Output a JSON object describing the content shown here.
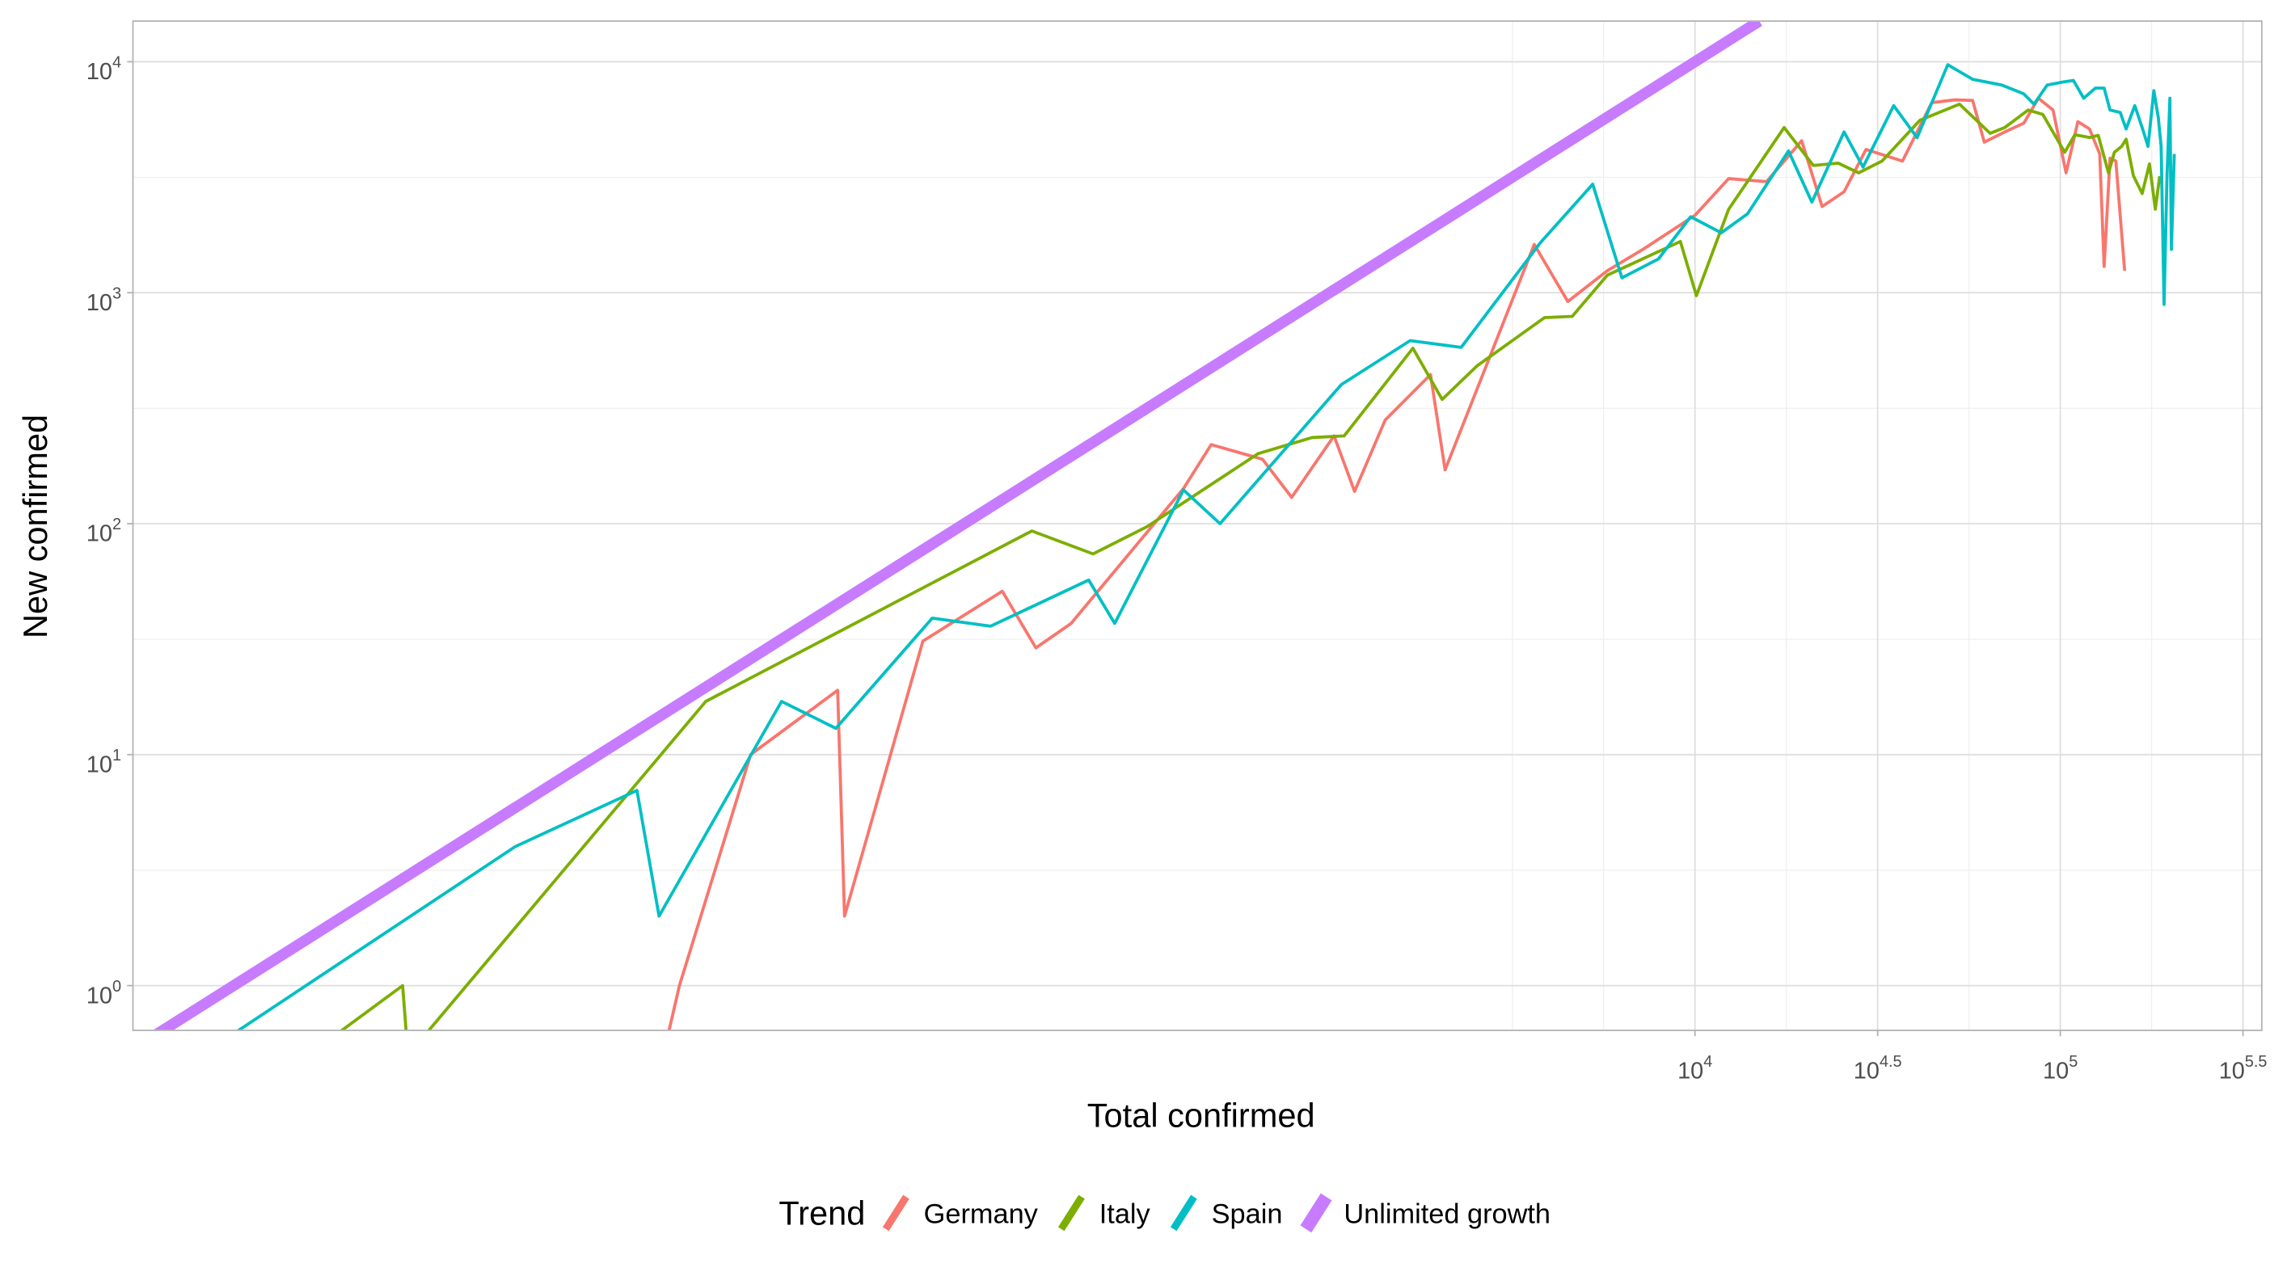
{
  "chart_data": {
    "type": "line",
    "x_label": "Total confirmed",
    "y_label": "New confirmed",
    "legend_title": "Trend",
    "legend_position": "bottom",
    "xscale": "log",
    "yscale": "log",
    "grid": true,
    "xlim": [
      0.53,
      356000
    ],
    "ylim": [
      0.64,
      15000
    ],
    "xticks": [
      {
        "value": 10000,
        "label": "10",
        "exponent": "4"
      },
      {
        "value": 31623,
        "label": "10",
        "exponent": "4.5"
      },
      {
        "value": 100000,
        "label": "10",
        "exponent": "5"
      },
      {
        "value": 316228,
        "label": "10",
        "exponent": "5.5"
      }
    ],
    "xminorticks": [
      3162,
      5623,
      17783,
      56234,
      177828
    ],
    "yticks": [
      {
        "value": 1,
        "label": "10",
        "exponent": "0"
      },
      {
        "value": 10,
        "label": "10",
        "exponent": "1"
      },
      {
        "value": 100,
        "label": "10",
        "exponent": "2"
      },
      {
        "value": 1000,
        "label": "10",
        "exponent": "3"
      },
      {
        "value": 10000,
        "label": "10",
        "exponent": "4"
      }
    ],
    "yminorticks": [
      3.16,
      31.6,
      316,
      3162
    ],
    "series": [
      {
        "name": "Germany",
        "color": "#F8766D",
        "x": [
          15,
          16.6,
          26,
          45,
          47,
          77,
          127,
          157,
          196,
          398,
          474,
          655,
          787,
          1028,
          1170,
          1419,
          1888,
          2070,
          3631,
          4487,
          5754,
          7244,
          10000,
          12360,
          15700,
          19590,
          22280,
          25590,
          29380,
          36980,
          44460,
          51520,
          57540,
          61940,
          70470,
          79430,
          87100,
          95500,
          103700,
          111700,
          120200,
          128200,
          131800,
          136800,
          141900,
          150000
        ],
        "values": [
          0.5,
          1,
          10,
          19,
          2,
          31,
          51,
          29,
          37,
          142,
          220,
          190,
          130,
          240,
          138,
          281,
          442,
          171,
          1618,
          916,
          1245,
          1549,
          2163,
          3118,
          3027,
          4550,
          2362,
          2735,
          4170,
          3715,
          6650,
          6840,
          6800,
          4487,
          4966,
          5420,
          6950,
          6180,
          3304,
          5503,
          5117,
          3990,
          1300,
          3822,
          3715,
          1245
        ]
      },
      {
        "name": "Italy",
        "color": "#7CAE00",
        "x": [
          1.6,
          2.9,
          3.0,
          19.6,
          153,
          225,
          316,
          637,
          895,
          1096,
          1690,
          2032,
          2535,
          3873,
          4613,
          5754,
          9120,
          10090,
          12360,
          17540,
          21090,
          24660,
          28050,
          32510,
          41300,
          52970,
          64270,
          70470,
          81660,
          89540,
          102800,
          109600,
          120200,
          127000,
          135500,
          140600,
          147200,
          151400,
          158500,
          167500,
          175400,
          182000,
          187100
        ],
        "values": [
          0.5,
          1,
          0.5,
          17,
          93,
          74,
          97,
          201,
          236,
          240,
          575,
          345,
          483,
          780,
          790,
          1191,
          1667,
          971,
          2296,
          5190,
          3555,
          3640,
          3304,
          3715,
          5585,
          6550,
          4900,
          5190,
          6180,
          5916,
          4055,
          4830,
          4700,
          4800,
          3300,
          4055,
          4300,
          4620,
          3210,
          2690,
          3610,
          2300,
          3200
        ]
      },
      {
        "name": "Spain",
        "color": "#00BFC4",
        "x": [
          0.97,
          5.9,
          12.7,
          14.6,
          31.6,
          44.5,
          81.7,
          118,
          219,
          258,
          398,
          501,
          1076,
          1660,
          2291,
          3767,
          5248,
          6310,
          7943,
          9727,
          11800,
          13930,
          18030,
          20890,
          25590,
          28840,
          34990,
          40550,
          49200,
          57540,
          69180,
          79430,
          84720,
          92040,
          100900,
          108600,
          115900,
          124700,
          131800,
          136800,
          145900,
          151400,
          159900,
          169000,
          173800,
          180300,
          185400,
          188800,
          192300,
          195900,
          199500,
          201400,
          205100
        ],
        "values": [
          0.6,
          4,
          7,
          2,
          17,
          13,
          39,
          36,
          57,
          37,
          140,
          100,
          400,
          620,
          580,
          1641,
          2950,
          1160,
          1400,
          2133,
          1817,
          2197,
          4110,
          2468,
          4966,
          3500,
          6457,
          4690,
          9710,
          8395,
          7925,
          7260,
          6550,
          7925,
          8150,
          8300,
          6950,
          7690,
          7690,
          6180,
          6030,
          5117,
          6457,
          4966,
          4300,
          7500,
          5745,
          4300,
          890,
          3210,
          6950,
          1540,
          3990
        ]
      },
      {
        "name": "Unlimited growth",
        "color": "#C77CFF",
        "x": [
          0.6,
          15000
        ],
        "values": [
          0.6,
          15000
        ]
      }
    ]
  }
}
